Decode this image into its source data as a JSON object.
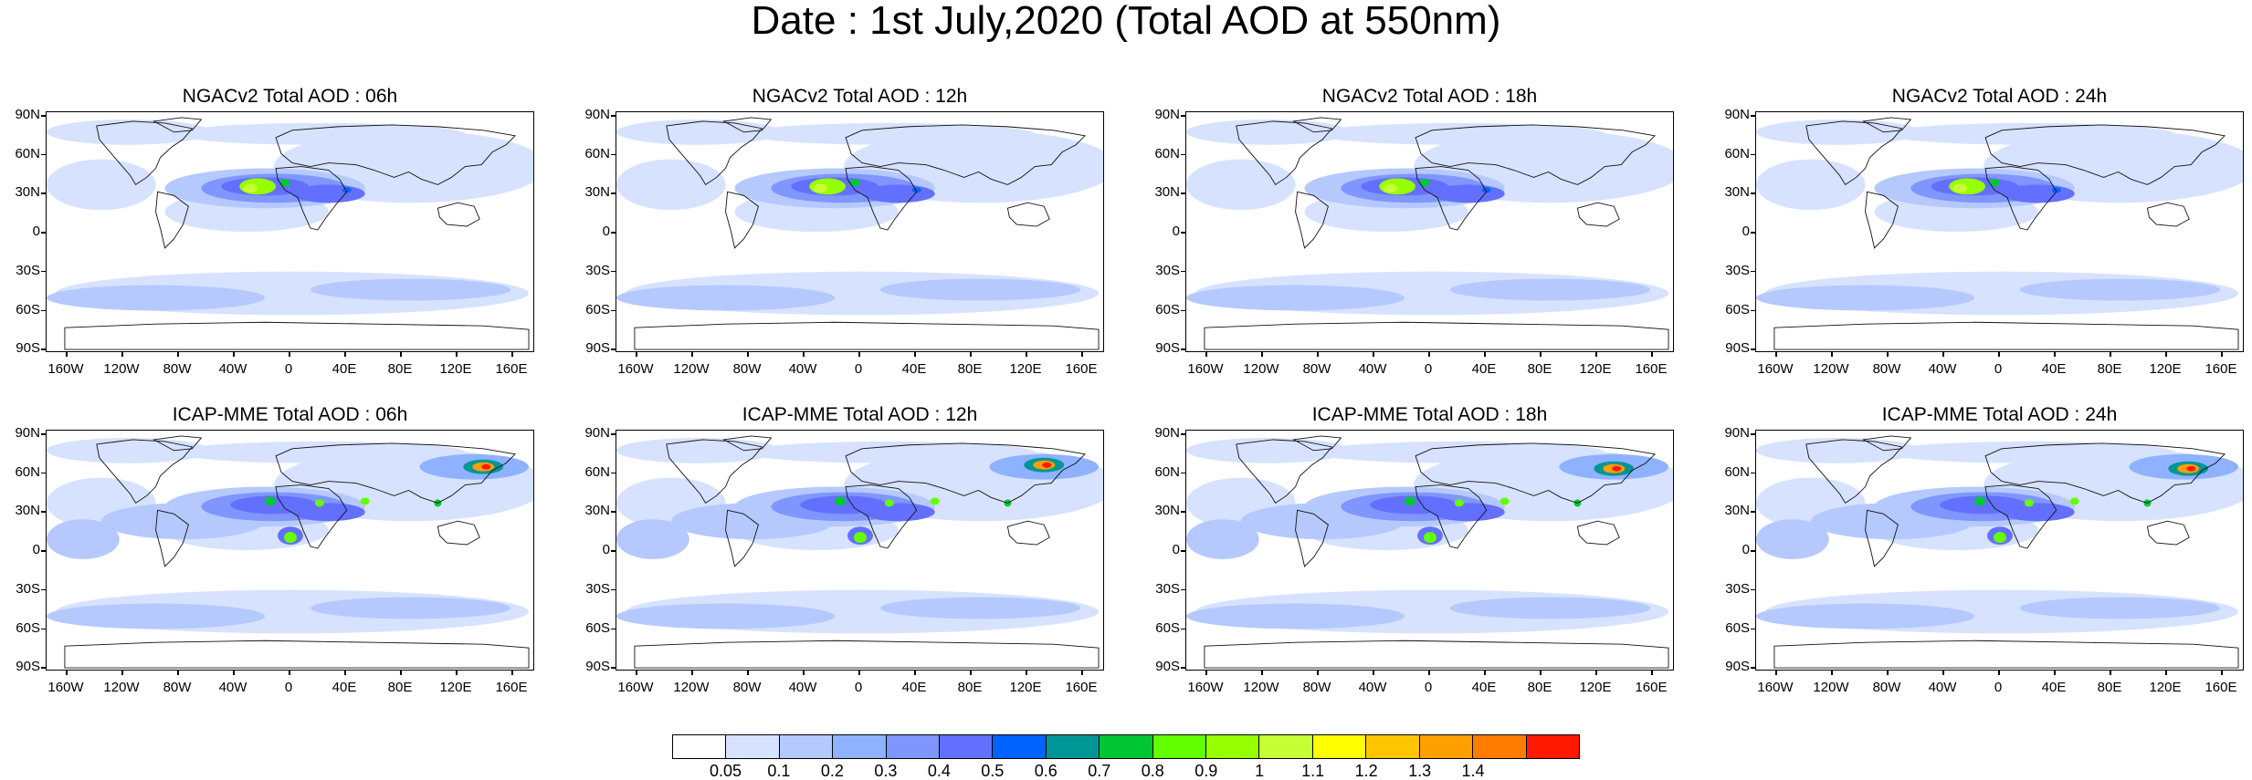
{
  "title": "Date : 1st July,2020 (Total AOD at 550nm)",
  "lat_ticks": [
    "90N",
    "60N",
    "30N",
    "0",
    "30S",
    "60S",
    "90S"
  ],
  "lon_ticks": [
    "160W",
    "120W",
    "80W",
    "40W",
    "0",
    "40E",
    "80E",
    "120E",
    "160E"
  ],
  "panels": [
    {
      "title": "NGACv2 Total AOD : 06h",
      "model": "NGACv2",
      "hour": "06h"
    },
    {
      "title": "NGACv2 Total AOD : 12h",
      "model": "NGACv2",
      "hour": "12h"
    },
    {
      "title": "NGACv2 Total AOD : 18h",
      "model": "NGACv2",
      "hour": "18h"
    },
    {
      "title": "NGACv2 Total AOD : 24h",
      "model": "NGACv2",
      "hour": "24h"
    },
    {
      "title": "ICAP-MME Total AOD : 06h",
      "model": "ICAP-MME",
      "hour": "06h"
    },
    {
      "title": "ICAP-MME Total AOD : 12h",
      "model": "ICAP-MME",
      "hour": "12h"
    },
    {
      "title": "ICAP-MME Total AOD : 18h",
      "model": "ICAP-MME",
      "hour": "18h"
    },
    {
      "title": "ICAP-MME Total AOD : 24h",
      "model": "ICAP-MME",
      "hour": "24h"
    }
  ],
  "colorbar": {
    "labels": [
      "0.05",
      "0.1",
      "0.2",
      "0.3",
      "0.4",
      "0.5",
      "0.6",
      "0.7",
      "0.8",
      "0.9",
      "1",
      "1.1",
      "1.2",
      "1.3",
      "1.4"
    ],
    "colors": [
      "#ffffff",
      "#d6e2ff",
      "#b5c9ff",
      "#8eb2ff",
      "#7f96ff",
      "#6370ff",
      "#0063ff",
      "#009696",
      "#00c633",
      "#63ff00",
      "#96ff00",
      "#c6ff33",
      "#ffff00",
      "#ffc600",
      "#ffa000",
      "#ff7c00",
      "#ff1900"
    ]
  }
}
